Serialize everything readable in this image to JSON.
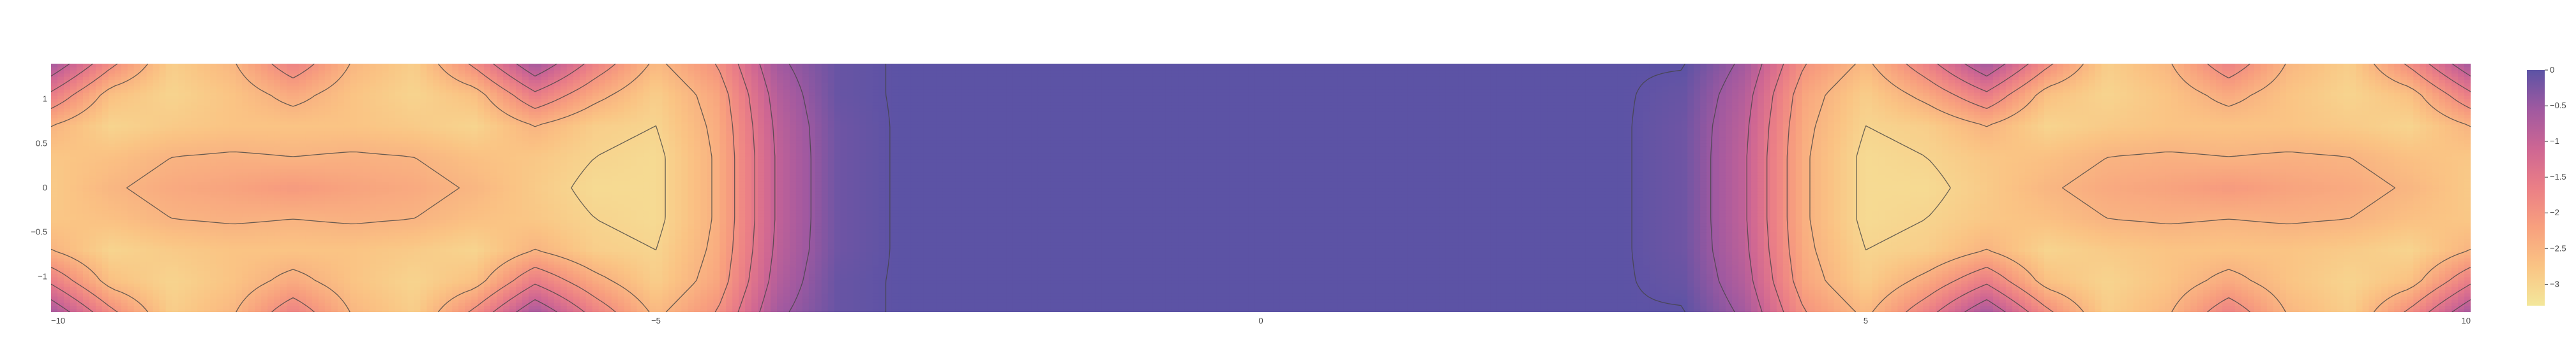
{
  "chart_data": {
    "type": "heatmap",
    "subtype": "contour",
    "title": "",
    "xlabel": "",
    "ylabel": "",
    "x_range": [
      -10,
      10
    ],
    "y_range": [
      -1.4,
      1.4
    ],
    "z_range": [
      -3.3,
      0
    ],
    "x_ticks": [
      {
        "value": -10,
        "label": "−10"
      },
      {
        "value": -5,
        "label": "−5"
      },
      {
        "value": 0,
        "label": "0"
      },
      {
        "value": 5,
        "label": "5"
      },
      {
        "value": 10,
        "label": "10"
      }
    ],
    "y_ticks": [
      {
        "value": 1,
        "label": "1"
      },
      {
        "value": 0.5,
        "label": "0.5"
      },
      {
        "value": 0,
        "label": "0"
      },
      {
        "value": -0.5,
        "label": "−0.5"
      },
      {
        "value": -1,
        "label": "−1"
      }
    ],
    "colorbar": {
      "ticks": [
        {
          "value": 0,
          "label": "0"
        },
        {
          "value": -0.5,
          "label": "−0.5"
        },
        {
          "value": -1,
          "label": "−1"
        },
        {
          "value": -1.5,
          "label": "−1.5"
        },
        {
          "value": -2,
          "label": "−2"
        },
        {
          "value": -2.5,
          "label": "−2.5"
        },
        {
          "value": -3,
          "label": "−3"
        }
      ],
      "colorscale": [
        "#5c53a5",
        "#a059a0",
        "#ce6693",
        "#eb7f86",
        "#f8a07e",
        "#fac484",
        "#f3e79b"
      ]
    },
    "contour_levels": [
      -3.0,
      -2.5,
      -2.0,
      -1.5,
      -1.0,
      -0.5,
      -0.02
    ],
    "x": [
      -10,
      -9.5,
      -9,
      -8.5,
      -8,
      -7.5,
      -7,
      -6.5,
      -6,
      -5.5,
      -5,
      -4.5,
      -4,
      -3.5,
      -3,
      -2.5,
      -2,
      -1.5,
      -1,
      -0.5,
      0,
      0.5,
      1,
      1.5,
      2,
      2.5,
      3,
      3.5,
      4,
      4.5,
      5,
      5.5,
      6,
      6.5,
      7,
      7.5,
      8,
      8.5,
      9,
      9.5,
      10
    ],
    "y": [
      -1.4,
      -1.05,
      -0.7,
      -0.35,
      0,
      0.35,
      0.7,
      1.05,
      1.4
    ],
    "z": [
      [
        -0.6,
        -1.9,
        -2.9,
        -2.55,
        -1.7,
        -2.55,
        -2.9,
        -1.9,
        -0.6,
        -1.7,
        -2.6,
        -2.0,
        -0.6,
        -0.1,
        0,
        0,
        0,
        0,
        0,
        0,
        0,
        0,
        0,
        0,
        0,
        0,
        0,
        0,
        -0.6,
        -2.0,
        -2.6,
        -1.7,
        -0.6,
        -1.9,
        -2.9,
        -2.55,
        -1.7,
        -2.55,
        -2.9,
        -1.9,
        -0.6
      ],
      [
        -1.6,
        -2.7,
        -3.0,
        -2.75,
        -2.35,
        -2.75,
        -3.0,
        -2.7,
        -1.6,
        -2.35,
        -2.9,
        -2.3,
        -0.8,
        -0.1,
        0,
        0,
        0,
        0,
        0,
        0,
        0,
        0,
        0,
        0,
        0,
        0,
        0,
        -0.1,
        -0.8,
        -2.3,
        -2.9,
        -2.35,
        -1.6,
        -2.7,
        -3.0,
        -2.75,
        -2.35,
        -2.75,
        -3.0,
        -2.7,
        -1.6
      ],
      [
        -2.5,
        -3.0,
        -2.85,
        -2.75,
        -2.75,
        -2.75,
        -2.85,
        -3.0,
        -2.5,
        -2.9,
        -3.0,
        -2.4,
        -0.9,
        -0.15,
        0,
        0,
        0,
        0,
        0,
        0,
        0,
        0,
        0,
        0,
        0,
        0,
        0,
        -0.15,
        -0.9,
        -2.4,
        -3.0,
        -2.9,
        -2.5,
        -3.0,
        -2.85,
        -2.75,
        -2.75,
        -2.75,
        -2.85,
        -3.0,
        -2.5
      ],
      [
        -2.8,
        -2.7,
        -2.5,
        -2.45,
        -2.5,
        -2.45,
        -2.5,
        -2.7,
        -2.8,
        -3.0,
        -3.1,
        -2.45,
        -0.95,
        -0.15,
        0,
        0,
        0,
        0,
        0,
        0,
        0,
        0,
        0,
        0,
        0,
        0,
        0,
        -0.15,
        -0.95,
        -2.45,
        -3.1,
        -3.0,
        -2.8,
        -2.7,
        -2.5,
        -2.45,
        -2.5,
        -2.45,
        -2.5,
        -2.7,
        -2.8
      ],
      [
        -2.85,
        -2.55,
        -2.35,
        -2.25,
        -2.1,
        -2.25,
        -2.35,
        -2.55,
        -2.85,
        -3.1,
        -3.1,
        -2.45,
        -0.95,
        -0.15,
        0,
        0,
        0,
        0,
        0,
        0,
        0,
        0,
        0,
        0,
        0,
        0,
        0,
        -0.15,
        -0.95,
        -2.45,
        -3.1,
        -3.1,
        -2.85,
        -2.55,
        -2.35,
        -2.25,
        -2.1,
        -2.25,
        -2.35,
        -2.55,
        -2.85
      ],
      [
        -2.8,
        -2.7,
        -2.5,
        -2.45,
        -2.5,
        -2.45,
        -2.5,
        -2.7,
        -2.8,
        -3.0,
        -3.1,
        -2.45,
        -0.95,
        -0.15,
        0,
        0,
        0,
        0,
        0,
        0,
        0,
        0,
        0,
        0,
        0,
        0,
        0,
        -0.15,
        -0.95,
        -2.45,
        -3.1,
        -3.0,
        -2.8,
        -2.7,
        -2.5,
        -2.45,
        -2.5,
        -2.45,
        -2.5,
        -2.7,
        -2.8
      ],
      [
        -2.5,
        -3.0,
        -2.85,
        -2.75,
        -2.75,
        -2.75,
        -2.85,
        -3.0,
        -2.5,
        -2.9,
        -3.0,
        -2.4,
        -0.9,
        -0.15,
        0,
        0,
        0,
        0,
        0,
        0,
        0,
        0,
        0,
        0,
        0,
        0,
        0,
        -0.15,
        -0.9,
        -2.4,
        -3.0,
        -2.9,
        -2.5,
        -3.0,
        -2.85,
        -2.75,
        -2.75,
        -2.75,
        -2.85,
        -3.0,
        -2.5
      ],
      [
        -1.6,
        -2.7,
        -3.0,
        -2.75,
        -2.35,
        -2.75,
        -3.0,
        -2.7,
        -1.6,
        -2.35,
        -2.9,
        -2.3,
        -0.8,
        -0.1,
        0,
        0,
        0,
        0,
        0,
        0,
        0,
        0,
        0,
        0,
        0,
        0,
        0,
        -0.1,
        -0.8,
        -2.3,
        -2.9,
        -2.35,
        -1.6,
        -2.7,
        -3.0,
        -2.75,
        -2.35,
        -2.75,
        -3.0,
        -2.7,
        -1.6
      ],
      [
        -0.6,
        -1.9,
        -2.9,
        -2.55,
        -1.7,
        -2.55,
        -2.9,
        -1.9,
        -0.6,
        -1.7,
        -2.6,
        -2.0,
        -0.6,
        -0.1,
        0,
        0,
        0,
        0,
        0,
        0,
        0,
        0,
        0,
        0,
        0,
        0,
        0,
        0,
        -0.6,
        -2.0,
        -2.6,
        -1.7,
        -0.6,
        -1.9,
        -2.9,
        -2.55,
        -1.7,
        -2.55,
        -2.9,
        -1.9,
        -0.6
      ]
    ]
  }
}
